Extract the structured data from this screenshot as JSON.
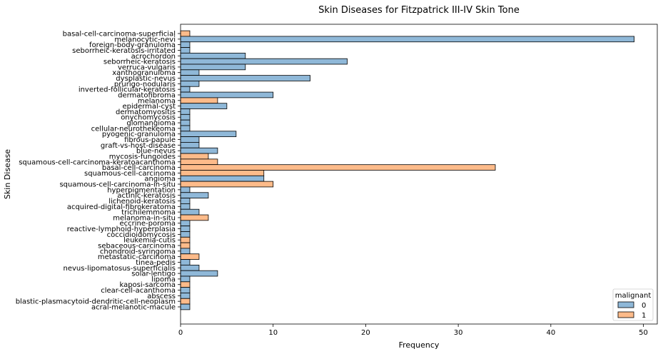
{
  "chart_data": {
    "type": "bar",
    "orientation": "horizontal",
    "title": "Skin Diseases for Fitzpatrick III-IV Skin Tone",
    "xlabel": "Frequency",
    "ylabel": "Skin Disease",
    "xlim": [
      0,
      51.5
    ],
    "xticks": [
      0,
      10,
      20,
      30,
      40,
      50
    ],
    "grid": false,
    "legend": {
      "title": "malignant",
      "placement": "bottom-right",
      "entries": [
        "0",
        "1"
      ]
    },
    "colors": {
      "0": "#8fb8d8",
      "1": "#fdbb8a"
    },
    "categories": [
      "basal-cell-carcinoma-superficial",
      "melanocytic-nevi",
      "foreign-body-granuloma",
      "seborrheic-keratosis-irritated",
      "acrochordon",
      "seborrheic-keratosis",
      "verruca-vulgaris",
      "xanthogranuloma",
      "dysplastic-nevus",
      "prurigo-nodularis",
      "inverted-follicular-keratosis",
      "dermatofibroma",
      "melanoma",
      "epidermal-cyst",
      "dermatomyositis",
      "onychomycosis",
      "glomangioma",
      "cellular-neurothekeoma",
      "pyogenic-granuloma",
      "fibrous-papule",
      "graft-vs-host-disease",
      "blue-nevus",
      "mycosis-fungoides",
      "squamous-cell-carcinoma-keratoacanthoma",
      "basal-cell-carcinoma",
      "squamous-cell-carcinoma",
      "angioma",
      "squamous-cell-carcinoma-in-situ",
      "hyperpigmentation",
      "actinic-keratosis",
      "lichenoid-keratosis",
      "acquired-digital-fibrokeratoma",
      "trichilemmoma",
      "melanoma-in-situ",
      "eccrine-poroma",
      "reactive-lymphoid-hyperplasia",
      "coccidioidomycosis",
      "leukemia-cutis",
      "sebaceous-carcinoma",
      "chondroid-syringoma",
      "metastatic-carcinoma",
      "tinea-pedis",
      "nevus-lipomatosus-superficialis",
      "solar-lentigo",
      "lipoma",
      "kaposi-sarcoma",
      "clear-cell-acanthoma",
      "abscess",
      "blastic-plasmacytoid-dendritic-cell-neoplasm",
      "acral-melanotic-macule"
    ],
    "values": [
      1,
      49,
      1,
      1,
      7,
      18,
      7,
      2,
      14,
      2,
      1,
      10,
      4,
      5,
      1,
      1,
      1,
      1,
      6,
      2,
      2,
      4,
      3,
      4,
      34,
      9,
      9,
      10,
      1,
      3,
      1,
      1,
      2,
      3,
      1,
      1,
      1,
      1,
      1,
      1,
      2,
      1,
      2,
      4,
      1,
      1,
      1,
      1,
      1,
      1
    ],
    "malignant": [
      "1",
      "0",
      "0",
      "0",
      "0",
      "0",
      "0",
      "0",
      "0",
      "0",
      "0",
      "0",
      "1",
      "0",
      "0",
      "0",
      "0",
      "0",
      "0",
      "0",
      "0",
      "0",
      "1",
      "1",
      "1",
      "1",
      "0",
      "1",
      "0",
      "0",
      "0",
      "0",
      "0",
      "1",
      "0",
      "0",
      "0",
      "1",
      "1",
      "0",
      "1",
      "0",
      "0",
      "0",
      "0",
      "1",
      "0",
      "0",
      "1",
      "0"
    ]
  }
}
